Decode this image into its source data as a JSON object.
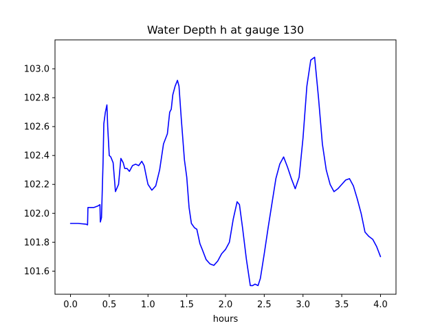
{
  "chart_data": {
    "type": "line",
    "title": "Water Depth h at gauge 130",
    "xlabel": "hours",
    "ylabel": "",
    "xlim": [
      -0.2,
      4.2
    ],
    "ylim": [
      101.44,
      103.2
    ],
    "xticks": [
      0.0,
      0.5,
      1.0,
      1.5,
      2.0,
      2.5,
      3.0,
      3.5,
      4.0
    ],
    "xtick_labels": [
      "0.0",
      "0.5",
      "1.0",
      "1.5",
      "2.0",
      "2.5",
      "3.0",
      "3.5",
      "4.0"
    ],
    "yticks": [
      101.6,
      101.8,
      102.0,
      102.2,
      102.4,
      102.6,
      102.8,
      103.0
    ],
    "ytick_labels": [
      "101.6",
      "101.8",
      "102.0",
      "102.2",
      "102.4",
      "102.6",
      "102.8",
      "103.0"
    ],
    "grid": false,
    "series": [
      {
        "color": "#0000ff",
        "x": [
          0.0,
          0.1,
          0.2,
          0.22,
          0.225,
          0.3,
          0.35,
          0.38,
          0.385,
          0.4,
          0.42,
          0.43,
          0.45,
          0.47,
          0.48,
          0.5,
          0.52,
          0.55,
          0.58,
          0.62,
          0.65,
          0.68,
          0.7,
          0.73,
          0.76,
          0.8,
          0.84,
          0.88,
          0.92,
          0.95,
          0.98,
          1.0,
          1.05,
          1.1,
          1.15,
          1.2,
          1.25,
          1.28,
          1.3,
          1.32,
          1.35,
          1.38,
          1.4,
          1.43,
          1.47,
          1.5,
          1.53,
          1.56,
          1.6,
          1.63,
          1.67,
          1.7,
          1.75,
          1.8,
          1.85,
          1.9,
          1.95,
          2.0,
          2.05,
          2.1,
          2.15,
          2.18,
          2.22,
          2.27,
          2.32,
          2.35,
          2.38,
          2.42,
          2.45,
          2.5,
          2.55,
          2.6,
          2.65,
          2.7,
          2.75,
          2.8,
          2.85,
          2.9,
          2.95,
          3.0,
          3.05,
          3.1,
          3.15,
          3.2,
          3.25,
          3.3,
          3.35,
          3.4,
          3.45,
          3.5,
          3.55,
          3.6,
          3.65,
          3.7,
          3.75,
          3.8,
          3.85,
          3.9,
          3.95,
          4.0
        ],
        "values": [
          101.93,
          101.93,
          101.925,
          101.92,
          102.04,
          102.04,
          102.05,
          102.06,
          101.94,
          101.97,
          102.35,
          102.62,
          102.7,
          102.75,
          102.6,
          102.4,
          102.39,
          102.35,
          102.15,
          102.2,
          102.38,
          102.35,
          102.31,
          102.31,
          102.29,
          102.33,
          102.34,
          102.33,
          102.36,
          102.33,
          102.25,
          102.2,
          102.16,
          102.19,
          102.3,
          102.48,
          102.55,
          102.7,
          102.72,
          102.82,
          102.88,
          102.92,
          102.88,
          102.65,
          102.37,
          102.25,
          102.04,
          101.93,
          101.9,
          101.89,
          101.79,
          101.75,
          101.68,
          101.65,
          101.64,
          101.67,
          101.72,
          101.75,
          101.8,
          101.96,
          102.08,
          102.06,
          101.9,
          101.68,
          101.5,
          101.5,
          101.51,
          101.5,
          101.55,
          101.72,
          101.9,
          102.07,
          102.24,
          102.34,
          102.39,
          102.32,
          102.24,
          102.17,
          102.25,
          102.52,
          102.88,
          103.06,
          103.08,
          102.8,
          102.48,
          102.3,
          102.2,
          102.15,
          102.17,
          102.2,
          102.23,
          102.24,
          102.19,
          102.1,
          102.0,
          101.87,
          101.84,
          101.82,
          101.77,
          101.7
        ]
      }
    ]
  }
}
